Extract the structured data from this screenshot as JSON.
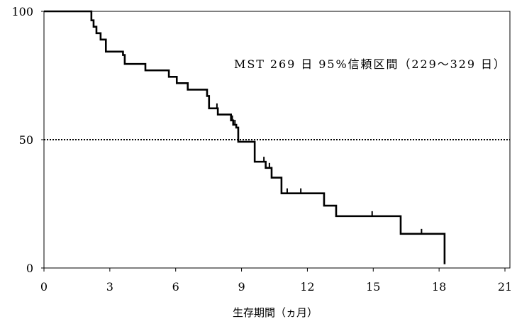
{
  "chart_data": {
    "type": "line",
    "step": true,
    "xlabel": "生存期間（ヵ月）",
    "xlim": [
      0,
      21
    ],
    "ylim": [
      0,
      100
    ],
    "x_ticks": [
      0,
      3,
      6,
      9,
      12,
      15,
      18,
      21
    ],
    "y_ticks": [
      0,
      50,
      100
    ],
    "grid": false,
    "legend": "none",
    "line_color": "#000000",
    "series": [
      {
        "x": [
          0,
          2.16,
          2.26,
          2.39,
          2.58,
          2.82,
          3.6,
          3.68,
          4.62,
          5.69,
          6.05,
          6.55,
          7.43,
          7.52,
          7.92,
          8.52,
          8.62,
          8.76,
          8.85,
          9.6,
          10.1,
          10.37,
          10.82,
          12.76,
          13.31,
          16.25,
          18.25
        ],
        "y": [
          100,
          96.5,
          94.0,
          91.5,
          89.0,
          84.3,
          83.0,
          79.5,
          77.0,
          74.5,
          72.0,
          69.5,
          67.0,
          62.2,
          59.8,
          57.5,
          55.8,
          54.7,
          49.2,
          41.4,
          39.0,
          35.2,
          29.1,
          24.3,
          20.2,
          13.3,
          1.5
        ]
      }
    ],
    "censored": [
      {
        "x": 7.88,
        "y": 62.2
      },
      {
        "x": 8.58,
        "y": 57.5
      },
      {
        "x": 8.7,
        "y": 55.8
      },
      {
        "x": 10.02,
        "y": 41.4
      },
      {
        "x": 10.27,
        "y": 39.0
      },
      {
        "x": 11.08,
        "y": 29.1
      },
      {
        "x": 11.7,
        "y": 29.1
      },
      {
        "x": 14.95,
        "y": 20.2
      },
      {
        "x": 17.2,
        "y": 13.3
      }
    ],
    "reference_lines": [
      {
        "y": 50,
        "style": "dotted"
      }
    ],
    "annotations": [
      "MST 269 日 95%信頼区間（229～329 日）"
    ]
  }
}
